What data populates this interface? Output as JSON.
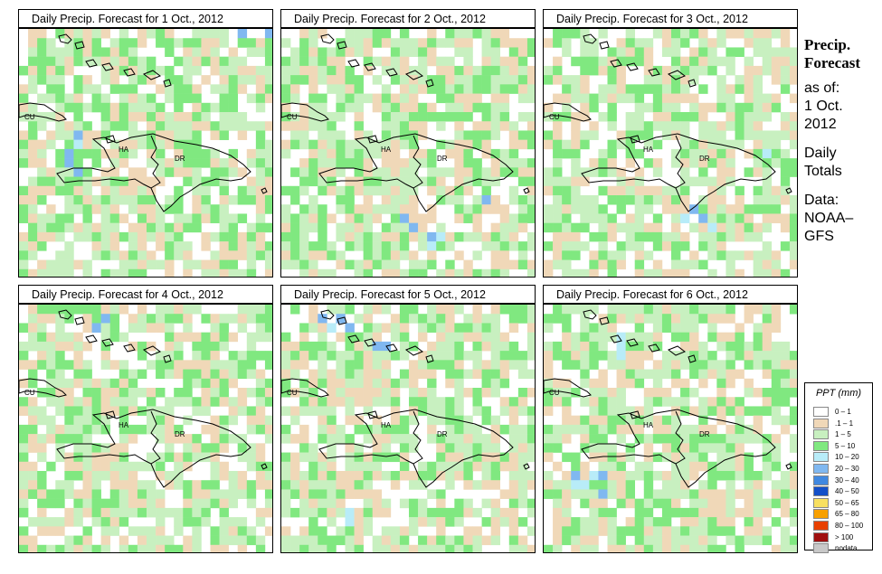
{
  "panels": [
    {
      "title": "Daily Precip. Forecast for  1 Oct., 2012",
      "seed": 11,
      "wet": 0.5,
      "blue": [
        [
          0,
          28
        ],
        [
          0,
          29
        ],
        [
          0,
          30
        ],
        [
          0,
          27
        ],
        [
          0,
          24
        ],
        [
          1,
          28
        ],
        [
          1,
          29
        ],
        [
          12,
          6
        ],
        [
          13,
          5
        ],
        [
          14,
          5
        ],
        [
          15,
          6
        ],
        [
          11,
          6
        ]
      ]
    },
    {
      "title": "Daily Precip. Forecast for  2 Oct., 2012",
      "seed": 23,
      "wet": 0.55,
      "blue": [
        [
          22,
          16
        ],
        [
          23,
          16
        ],
        [
          22,
          17
        ],
        [
          18,
          22
        ],
        [
          20,
          13
        ],
        [
          21,
          14
        ]
      ]
    },
    {
      "title": "Daily Precip. Forecast for  3 Oct., 2012",
      "seed": 37,
      "wet": 0.6,
      "blue": [
        [
          20,
          17
        ],
        [
          21,
          18
        ],
        [
          19,
          16
        ],
        [
          20,
          15
        ],
        [
          16,
          36
        ],
        [
          17,
          36
        ],
        [
          18,
          37
        ],
        [
          8,
          36
        ],
        [
          11,
          33
        ],
        [
          13,
          24
        ]
      ]
    },
    {
      "title": "Daily Precip. Forecast for  4 Oct., 2012",
      "seed": 41,
      "wet": 0.55,
      "blue": [
        [
          2,
          8
        ],
        [
          1,
          9
        ]
      ]
    },
    {
      "title": "Daily Precip. Forecast for  5 Oct., 2012",
      "seed": 53,
      "wet": 0.55,
      "blue": [
        [
          1,
          4
        ],
        [
          2,
          5
        ],
        [
          1,
          6
        ],
        [
          4,
          10
        ],
        [
          4,
          11
        ],
        [
          2,
          7
        ],
        [
          22,
          7
        ],
        [
          23,
          7
        ],
        [
          12,
          30
        ]
      ]
    },
    {
      "title": "Daily Precip. Forecast for  6 Oct., 2012",
      "seed": 67,
      "wet": 0.5,
      "blue": [
        [
          4,
          8
        ],
        [
          5,
          8
        ],
        [
          3,
          8
        ],
        [
          18,
          3
        ],
        [
          19,
          3
        ],
        [
          19,
          4
        ],
        [
          18,
          5
        ],
        [
          18,
          6
        ],
        [
          20,
          6
        ]
      ]
    }
  ],
  "country_labels": {
    "cu": "CU",
    "ha": "HA",
    "dr": "DR"
  },
  "side": {
    "title1": "Precip.",
    "title2": "Forecast",
    "asof": "as of:",
    "date1": "1 Oct.",
    "date2": "2012",
    "daily1": "Daily",
    "daily2": "Totals",
    "data1": "Data:",
    "data2": "NOAA–",
    "data3": "GFS"
  },
  "legend": {
    "title": "PPT (mm)",
    "items": [
      {
        "label": "0 – 1",
        "color": "#ffffff"
      },
      {
        "label": ".1 – 1",
        "color": "#f0d8b8"
      },
      {
        "label": "1 – 5",
        "color": "#c8f0c0"
      },
      {
        "label": "5 – 10",
        "color": "#80e880"
      },
      {
        "label": "10 – 20",
        "color": "#b8ecf8"
      },
      {
        "label": "20 – 30",
        "color": "#80b8f0"
      },
      {
        "label": "30 – 40",
        "color": "#4088e0"
      },
      {
        "label": "40 – 50",
        "color": "#1450c8"
      },
      {
        "label": "50 – 65",
        "color": "#f8e060"
      },
      {
        "label": "65 – 80",
        "color": "#f8a000"
      },
      {
        "label": "80 – 100",
        "color": "#e84000"
      },
      {
        "label": "> 100",
        "color": "#a01010"
      },
      {
        "label": "nodata",
        "color": "#c8c8c8"
      }
    ]
  }
}
